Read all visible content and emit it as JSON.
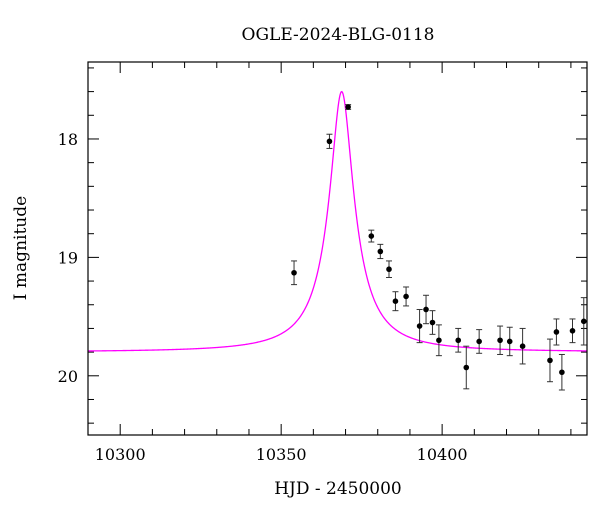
{
  "chart_data": {
    "type": "scatter",
    "title": "OGLE-2024-BLG-0118",
    "xlabel": "HJD - 2450000",
    "ylabel": "I magnitude",
    "xlim": [
      10290,
      10445
    ],
    "ylim": [
      20.5,
      17.35
    ],
    "y_inverted": true,
    "x_ticks": [
      10300,
      10350,
      10400
    ],
    "x_tick_labels": [
      "10300",
      "10350",
      "10400"
    ],
    "y_ticks": [
      18,
      19,
      20
    ],
    "y_tick_labels": [
      "18",
      "19",
      "20"
    ],
    "grid": false,
    "model_color": "#ff00ff",
    "point_color": "#000000",
    "model": {
      "description": "microlensing model light curve",
      "t0": 10368.8,
      "baseline_mag": 19.8,
      "peak_mag": 17.6,
      "half_width": 2.9
    },
    "series": [
      {
        "values": [
          {
            "x": 10354.0,
            "y": 19.13,
            "err": 0.1
          },
          {
            "x": 10365.0,
            "y": 18.02,
            "err": 0.06
          },
          {
            "x": 10370.8,
            "y": 17.73,
            "err": 0.02
          },
          {
            "x": 10378.0,
            "y": 18.82,
            "err": 0.05
          },
          {
            "x": 10380.8,
            "y": 18.95,
            "err": 0.06
          },
          {
            "x": 10383.5,
            "y": 19.1,
            "err": 0.07
          },
          {
            "x": 10385.5,
            "y": 19.37,
            "err": 0.08
          },
          {
            "x": 10388.8,
            "y": 19.33,
            "err": 0.08
          },
          {
            "x": 10393.0,
            "y": 19.58,
            "err": 0.14
          },
          {
            "x": 10395.0,
            "y": 19.44,
            "err": 0.12
          },
          {
            "x": 10397.0,
            "y": 19.55,
            "err": 0.1
          },
          {
            "x": 10399.0,
            "y": 19.7,
            "err": 0.13
          },
          {
            "x": 10405.0,
            "y": 19.7,
            "err": 0.1
          },
          {
            "x": 10407.5,
            "y": 19.93,
            "err": 0.18
          },
          {
            "x": 10411.5,
            "y": 19.71,
            "err": 0.1
          },
          {
            "x": 10418.0,
            "y": 19.7,
            "err": 0.12
          },
          {
            "x": 10421.0,
            "y": 19.71,
            "err": 0.12
          },
          {
            "x": 10425.0,
            "y": 19.75,
            "err": 0.15
          },
          {
            "x": 10433.5,
            "y": 19.87,
            "err": 0.18
          },
          {
            "x": 10435.5,
            "y": 19.63,
            "err": 0.11
          },
          {
            "x": 10437.2,
            "y": 19.97,
            "err": 0.15
          },
          {
            "x": 10440.5,
            "y": 19.62,
            "err": 0.1
          },
          {
            "x": 10444.0,
            "y": 19.54,
            "err": 0.2
          }
        ]
      }
    ]
  }
}
